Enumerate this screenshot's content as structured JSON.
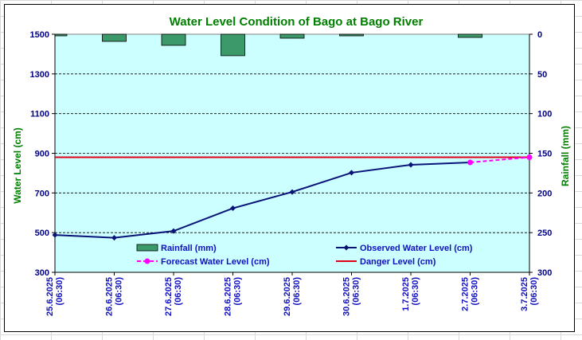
{
  "chart_data": {
    "type": "line",
    "title": "Water Level Condition of Bago at Bago River",
    "ylabel": "Water Level (cm)",
    "y2label": "Rainfall (mm)",
    "ylim": [
      300,
      1500
    ],
    "yticks": [
      300,
      500,
      700,
      900,
      1100,
      1300,
      1500
    ],
    "y2lim": [
      300,
      0
    ],
    "y2ticks": [
      0,
      50,
      100,
      150,
      200,
      250,
      300
    ],
    "categories": [
      [
        "25.6.2025",
        "(06:30)"
      ],
      [
        "26.6.2025",
        "(06:30)"
      ],
      [
        "27.6.2025",
        "(06:30)"
      ],
      [
        "28.6.2025",
        "(06:30)"
      ],
      [
        "29.6.2025",
        "(06:30)"
      ],
      [
        "30.6.2025",
        "(06:30)"
      ],
      [
        "1.7.2025",
        "(06:30)"
      ],
      [
        "2.7.2025",
        "(06:30)"
      ],
      [
        "3.7.2025",
        "(06:30)"
      ]
    ],
    "series": [
      {
        "name": "Rainfall (mm)",
        "kind": "bar",
        "axis": "right",
        "color": "#3c9a6a",
        "values": [
          2,
          9,
          14,
          27,
          5,
          2,
          null,
          4,
          null
        ]
      },
      {
        "name": "Observed Water Level (cm)",
        "kind": "line",
        "axis": "left",
        "color": "#0a1478",
        "values": [
          488,
          474,
          508,
          623,
          705,
          802,
          842,
          854,
          null
        ]
      },
      {
        "name": "Forecast Water Level (cm)",
        "kind": "dashed-line",
        "axis": "left",
        "color": "#ff00ff",
        "values": [
          null,
          null,
          null,
          null,
          null,
          null,
          null,
          854,
          880
        ]
      },
      {
        "name": "Danger Level (cm)",
        "kind": "hline",
        "axis": "left",
        "color": "#e0001b",
        "values": [
          880,
          880,
          880,
          880,
          880,
          880,
          880,
          880,
          880
        ]
      }
    ],
    "legend_order": [
      "Rainfall (mm)",
      "Observed Water Level (cm)",
      "Forecast Water Level (cm)",
      "Danger Level (cm)"
    ],
    "colors": {
      "plot_bg": "#ccffff",
      "title": "#008000",
      "left_axis": "#000080",
      "right_axis": "#008000"
    }
  }
}
